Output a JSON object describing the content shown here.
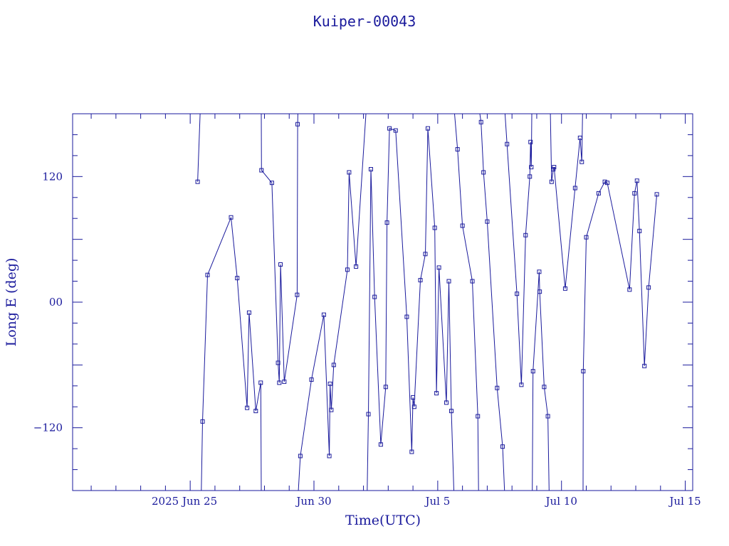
{
  "chart_data": {
    "type": "line",
    "title": "Kuiper-00043",
    "xlabel": "Time(UTC)",
    "ylabel": "Long E (deg)",
    "xlim": [
      20.25,
      45.3
    ],
    "ylim": [
      -180,
      180
    ],
    "x_unit": "days of 2025 (Jun 1 = 1; Jul 5 = 35)",
    "xticks": [
      {
        "x": 25,
        "label": "2025 Jun 25"
      },
      {
        "x": 30,
        "label": "Jun 30"
      },
      {
        "x": 35,
        "label": "Jul  5"
      },
      {
        "x": 40,
        "label": "Jul 10"
      },
      {
        "x": 45,
        "label": "Jul 15"
      }
    ],
    "yticks": [
      {
        "y": 120,
        "label": "120"
      },
      {
        "y": 0,
        "label": "00"
      },
      {
        "y": -120,
        "label": "−120"
      }
    ],
    "grid": false,
    "color": "#1a1a9c",
    "series": [
      {
        "segments": [
          [
            [
              25.3,
              115
            ],
            [
              25.4,
              180
            ]
          ],
          [
            [
              25.45,
              -180
            ],
            [
              25.5,
              -114
            ],
            [
              25.7,
              26
            ],
            [
              26.65,
              81
            ],
            [
              26.9,
              23
            ],
            [
              27.3,
              -101
            ],
            [
              27.38,
              -10
            ],
            [
              27.65,
              -104
            ],
            [
              27.85,
              -77
            ],
            [
              27.87,
              -180
            ]
          ],
          [
            [
              27.87,
              180
            ],
            [
              27.88,
              126
            ],
            [
              28.3,
              114
            ],
            [
              28.55,
              -58
            ],
            [
              28.6,
              -77
            ],
            [
              28.65,
              36
            ],
            [
              28.8,
              -76
            ],
            [
              29.32,
              7
            ],
            [
              29.34,
              170
            ],
            [
              29.35,
              180
            ]
          ],
          [
            [
              29.37,
              -180
            ],
            [
              29.45,
              -147
            ],
            [
              29.9,
              -74
            ],
            [
              30.4,
              -12
            ],
            [
              30.62,
              -147
            ],
            [
              30.65,
              -78
            ],
            [
              30.7,
              -103
            ],
            [
              30.8,
              -60
            ],
            [
              31.35,
              31
            ],
            [
              31.42,
              124
            ],
            [
              31.7,
              34
            ],
            [
              32.1,
              180
            ]
          ],
          [
            [
              32.15,
              -180
            ],
            [
              32.2,
              -107
            ],
            [
              32.3,
              127
            ],
            [
              32.45,
              5
            ],
            [
              32.7,
              -136
            ],
            [
              32.9,
              -81
            ],
            [
              32.95,
              76
            ],
            [
              33.05,
              166
            ],
            [
              33.3,
              164
            ],
            [
              33.75,
              -14
            ],
            [
              33.95,
              -143
            ],
            [
              34.0,
              -91
            ],
            [
              34.05,
              -100
            ],
            [
              34.3,
              21
            ],
            [
              34.5,
              46
            ],
            [
              34.6,
              166
            ],
            [
              34.88,
              71
            ],
            [
              34.95,
              -87
            ],
            [
              35.05,
              33
            ],
            [
              35.35,
              -96
            ],
            [
              35.45,
              20
            ],
            [
              35.55,
              -104
            ],
            [
              35.65,
              -180
            ]
          ],
          [
            [
              35.68,
              180
            ],
            [
              35.8,
              146
            ],
            [
              36.0,
              73
            ],
            [
              36.4,
              20
            ],
            [
              36.62,
              -109
            ],
            [
              36.65,
              -180
            ]
          ],
          [
            [
              36.7,
              180
            ],
            [
              36.75,
              172
            ],
            [
              36.85,
              124
            ],
            [
              37.0,
              77
            ],
            [
              37.4,
              -82
            ],
            [
              37.62,
              -138
            ],
            [
              37.7,
              -180
            ]
          ],
          [
            [
              37.72,
              180
            ],
            [
              37.8,
              151
            ],
            [
              38.2,
              8
            ],
            [
              38.38,
              -79
            ],
            [
              38.55,
              64
            ],
            [
              38.72,
              120
            ],
            [
              38.75,
              153
            ],
            [
              38.78,
              129
            ],
            [
              38.8,
              180
            ]
          ],
          [
            [
              38.82,
              -180
            ],
            [
              38.85,
              -66
            ],
            [
              39.1,
              29
            ],
            [
              39.12,
              10
            ],
            [
              39.3,
              -81
            ],
            [
              39.45,
              -109
            ],
            [
              39.5,
              -180
            ]
          ],
          [
            [
              39.55,
              180
            ],
            [
              39.6,
              115
            ],
            [
              39.67,
              127
            ],
            [
              39.7,
              129
            ],
            [
              40.15,
              13
            ],
            [
              40.55,
              109
            ],
            [
              40.75,
              157
            ],
            [
              40.82,
              134
            ],
            [
              40.85,
              180
            ]
          ],
          [
            [
              40.87,
              -180
            ],
            [
              40.88,
              -66
            ],
            [
              41.0,
              62
            ],
            [
              41.5,
              104
            ],
            [
              41.75,
              115
            ],
            [
              41.85,
              114
            ],
            [
              42.75,
              12
            ],
            [
              42.95,
              104
            ],
            [
              43.05,
              116
            ],
            [
              43.15,
              68
            ],
            [
              43.35,
              -61
            ],
            [
              43.52,
              14
            ],
            [
              43.85,
              103
            ]
          ]
        ]
      }
    ]
  }
}
